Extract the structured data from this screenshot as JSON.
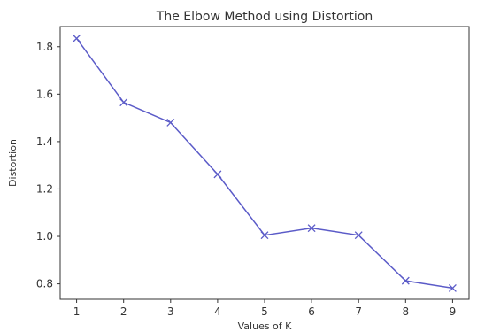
{
  "chart_data": {
    "type": "line",
    "title": "The Elbow Method using Distortion",
    "xlabel": "Values of K",
    "ylabel": "Distortion",
    "x": [
      1,
      2,
      3,
      4,
      5,
      6,
      7,
      8,
      9
    ],
    "series": [
      {
        "values": [
          1.835,
          1.565,
          1.48,
          1.262,
          1.005,
          1.035,
          1.005,
          0.813,
          0.782
        ],
        "color": "#5b5bc8",
        "marker": "x"
      }
    ],
    "xlim": [
      0.65,
      9.35
    ],
    "ylim": [
      0.735,
      1.885
    ],
    "xticks": [
      1,
      2,
      3,
      4,
      5,
      6,
      7,
      8,
      9
    ],
    "yticks": [
      0.8,
      1.0,
      1.2,
      1.4,
      1.6,
      1.8
    ],
    "ytick_labels": [
      "0.8",
      "1.0",
      "1.2",
      "1.4",
      "1.6",
      "1.8"
    ],
    "grid": false,
    "colors": {
      "axis": "#333333",
      "background": "#ffffff"
    }
  }
}
